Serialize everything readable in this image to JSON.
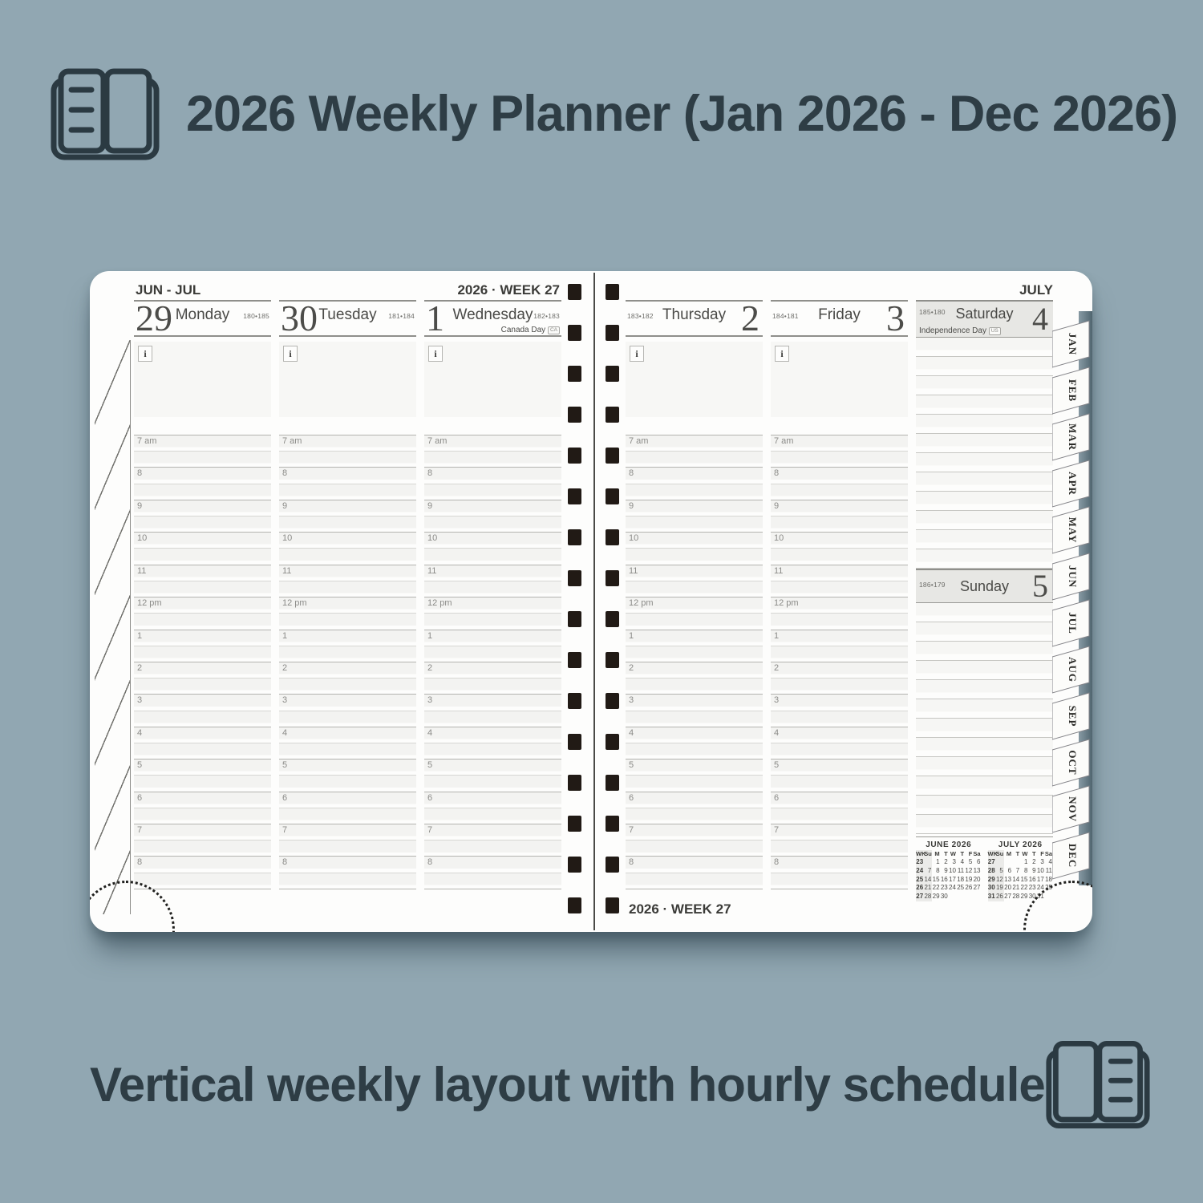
{
  "page": {
    "top_title": "2026 Weekly Planner (Jan 2026 - Dec 2026)",
    "bottom_caption": "Vertical weekly layout with hourly schedule"
  },
  "colors": {
    "background": "#91a7b2",
    "ink": "#2e3d45",
    "page_white": "#fdfdfc",
    "weekend_band": "#e7e7e4",
    "cover_edge_dark": "#50656f",
    "spiral_hole": "#211a15"
  },
  "planner": {
    "left_page": {
      "range_label": "JUN - JUL",
      "week_label": "2026 · WEEK 27"
    },
    "right_page": {
      "month_label": "JULY",
      "week_label": "2026 · WEEK 27"
    },
    "info_glyph": "i",
    "hours": [
      "7 am",
      "8",
      "9",
      "10",
      "11",
      "12 pm",
      "1",
      "2",
      "3",
      "4",
      "5",
      "6",
      "7",
      "8"
    ],
    "days": [
      {
        "num": "29",
        "name": "Monday",
        "doy": "180•185"
      },
      {
        "num": "30",
        "name": "Tuesday",
        "doy": "181•184"
      },
      {
        "num": "1",
        "name": "Wednesday",
        "doy": "182•183",
        "holiday": "Canada Day",
        "badge": "CA"
      },
      {
        "num": "2",
        "name": "Thursday",
        "doy": "183•182"
      },
      {
        "num": "3",
        "name": "Friday",
        "doy": "184•181"
      },
      {
        "num": "4",
        "name": "Saturday",
        "doy": "185•180",
        "holiday": "Independence Day",
        "badge": "US"
      },
      {
        "num": "5",
        "name": "Sunday",
        "doy": "186•179"
      }
    ],
    "tabs": [
      "JAN",
      "FEB",
      "MAR",
      "APR",
      "MAY",
      "JUN",
      "JUL",
      "AUG",
      "SEP",
      "OCT",
      "NOV",
      "DEC"
    ],
    "mini_calendars": [
      {
        "title": "JUNE  2026",
        "headers": [
          "WK",
          "Su",
          "M",
          "T",
          "W",
          "T",
          "F",
          "Sa"
        ],
        "rows": [
          [
            "23",
            "",
            "1",
            "2",
            "3",
            "4",
            "5",
            "6"
          ],
          [
            "24",
            "7",
            "8",
            "9",
            "10",
            "11",
            "12",
            "13"
          ],
          [
            "25",
            "14",
            "15",
            "16",
            "17",
            "18",
            "19",
            "20"
          ],
          [
            "26",
            "21",
            "22",
            "23",
            "24",
            "25",
            "26",
            "27"
          ],
          [
            "27",
            "28",
            "29",
            "30",
            "",
            "",
            "",
            ""
          ]
        ]
      },
      {
        "title": "JULY  2026",
        "headers": [
          "WK",
          "Su",
          "M",
          "T",
          "W",
          "T",
          "F",
          "Sa"
        ],
        "rows": [
          [
            "27",
            "",
            "",
            "",
            "1",
            "2",
            "3",
            "4"
          ],
          [
            "28",
            "5",
            "6",
            "7",
            "8",
            "9",
            "10",
            "11"
          ],
          [
            "29",
            "12",
            "13",
            "14",
            "15",
            "16",
            "17",
            "18"
          ],
          [
            "30",
            "19",
            "20",
            "21",
            "22",
            "23",
            "24",
            "25"
          ],
          [
            "31",
            "26",
            "27",
            "28",
            "29",
            "30",
            "31",
            ""
          ]
        ]
      }
    ]
  }
}
